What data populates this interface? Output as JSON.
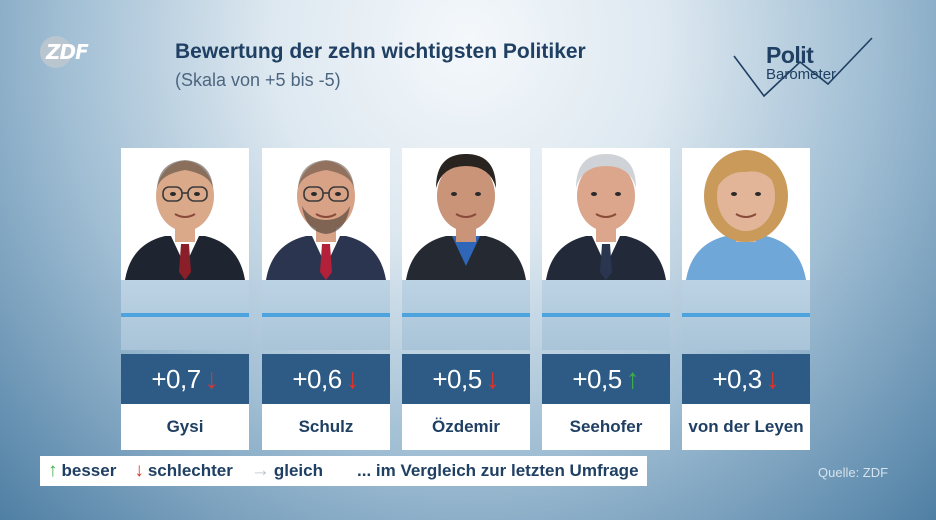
{
  "header": {
    "logo_text": "ZDF",
    "title": "Bewertung der zehn wichtigsten Politiker",
    "subtitle": "(Skala von +5 bis -5)",
    "brand_line1": "Polit",
    "brand_line2": "Barometer"
  },
  "colors": {
    "down": "#e0332b",
    "up": "#3fae49",
    "same": "#b8c2ca",
    "score_bg": "#2d5b86",
    "title": "#1f3f63"
  },
  "chart_data": {
    "type": "bar",
    "title": "Bewertung der zehn wichtigsten Politiker",
    "subtitle": "(Skala von +5 bis -5)",
    "ylim": [
      -5,
      5
    ],
    "categories": [
      "Gysi",
      "Schulz",
      "Özdemir",
      "Seehofer",
      "von der Leyen"
    ],
    "values": [
      0.7,
      0.6,
      0.5,
      0.5,
      0.3
    ],
    "labels": [
      "+0,7",
      "+0,6",
      "+0,5",
      "+0,5",
      "+0,3"
    ],
    "trend": [
      "down",
      "down",
      "down",
      "up",
      "down"
    ]
  },
  "politicians": [
    {
      "name": "Gysi",
      "score": "+0,7",
      "trend": "down",
      "arrow": "↓"
    },
    {
      "name": "Schulz",
      "score": "+0,6",
      "trend": "down",
      "arrow": "↓"
    },
    {
      "name": "Özdemir",
      "score": "+0,5",
      "trend": "down",
      "arrow": "↓"
    },
    {
      "name": "Seehofer",
      "score": "+0,5",
      "trend": "up",
      "arrow": "↑"
    },
    {
      "name": "von der Leyen",
      "score": "+0,3",
      "trend": "down",
      "arrow": "↓"
    }
  ],
  "legend": {
    "better_arrow": "↑",
    "better": "besser",
    "worse_arrow": "↓",
    "worse": "schlechter",
    "same_arrow": "→",
    "same": "gleich",
    "note": "... im Vergleich zur letzten Umfrage"
  },
  "source": "Quelle: ZDF"
}
